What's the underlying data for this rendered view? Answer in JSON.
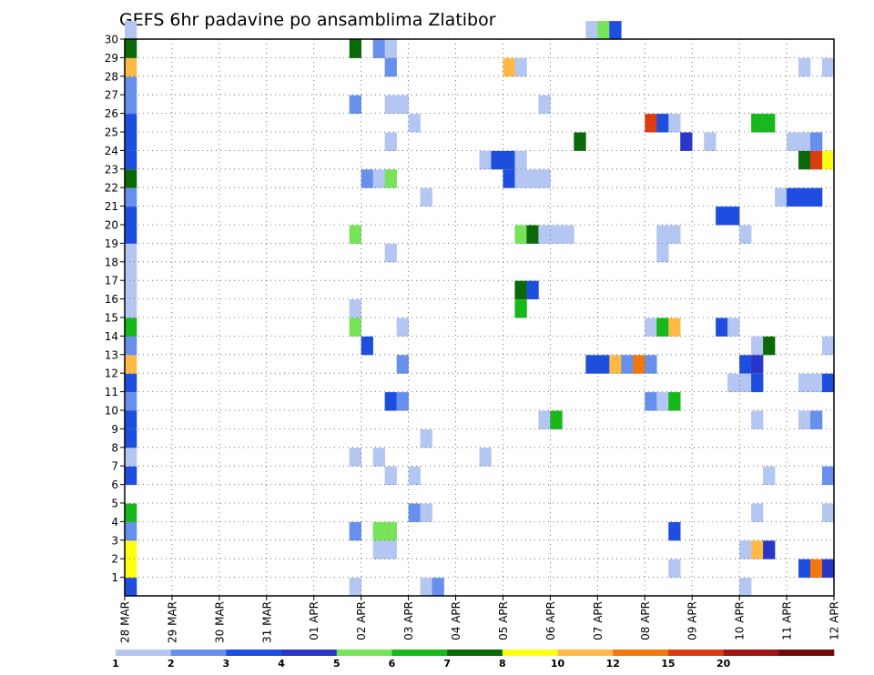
{
  "chart_data": {
    "type": "heatmap",
    "title": "GEFS 6hr padavine po ansamblima Zlatibor",
    "y_ticks": [
      "1",
      "2",
      "3",
      "4",
      "5",
      "6",
      "7",
      "8",
      "9",
      "10",
      "11",
      "12",
      "13",
      "14",
      "15",
      "16",
      "17",
      "18",
      "19",
      "20",
      "21",
      "22",
      "23",
      "24",
      "25",
      "26",
      "27",
      "28",
      "29",
      "30"
    ],
    "x_ticks": [
      "28 MAR",
      "29 MAR",
      "30 MAR",
      "31 MAR",
      "01 APR",
      "02 APR",
      "03 APR",
      "04 APR",
      "05 APR",
      "06 APR",
      "07 APR",
      "08 APR",
      "09 APR",
      "10 APR",
      "11 APR",
      "12 APR"
    ],
    "time_steps_per_day": 4,
    "grid": true,
    "legend_placement": "bottom",
    "legend": {
      "labels": [
        "1",
        "2",
        "3",
        "4",
        "5",
        "6",
        "7",
        "8",
        "10",
        "12",
        "15",
        "20"
      ],
      "colors": [
        "#b4c6f2",
        "#6690ec",
        "#1e4ee0",
        "#2936c8",
        "#78e35a",
        "#16b81a",
        "#0a6a0a",
        "#ffff14",
        "#ffba46",
        "#f2780e",
        "#dc3c12",
        "#a01414",
        "#6e0a0a"
      ]
    },
    "cells": [
      {
        "m": 1,
        "t": 0,
        "b": 7
      },
      {
        "m": 2,
        "t": 0,
        "b": 7
      },
      {
        "m": 3,
        "t": 0,
        "b": 1
      },
      {
        "m": 4,
        "t": 0,
        "b": 5
      },
      {
        "m": 6,
        "t": 0,
        "b": 2
      },
      {
        "m": 7,
        "t": 0,
        "b": 0
      },
      {
        "m": 8,
        "t": 0,
        "b": 2
      },
      {
        "m": 9,
        "t": 0,
        "b": 2
      },
      {
        "m": 10,
        "t": 0,
        "b": 1
      },
      {
        "m": 11,
        "t": 0,
        "b": 2
      },
      {
        "m": 12,
        "t": 0,
        "b": 8
      },
      {
        "m": 13,
        "t": 0,
        "b": 1
      },
      {
        "m": 14,
        "t": 0,
        "b": 5
      },
      {
        "m": 15,
        "t": 0,
        "b": 0
      },
      {
        "m": 16,
        "t": 0,
        "b": 0
      },
      {
        "m": 17,
        "t": 0,
        "b": 0
      },
      {
        "m": 18,
        "t": 0,
        "b": 0
      },
      {
        "m": 19,
        "t": 0,
        "b": 2
      },
      {
        "m": 20,
        "t": 0,
        "b": 2
      },
      {
        "m": 21,
        "t": 0,
        "b": 1
      },
      {
        "m": 22,
        "t": 0,
        "b": 6
      },
      {
        "m": 23,
        "t": 0,
        "b": 2
      },
      {
        "m": 24,
        "t": 0,
        "b": 2
      },
      {
        "m": 25,
        "t": 0,
        "b": 2
      },
      {
        "m": 26,
        "t": 0,
        "b": 1
      },
      {
        "m": 27,
        "t": 0,
        "b": 1
      },
      {
        "m": 28,
        "t": 0,
        "b": 8
      },
      {
        "m": 29,
        "t": 0,
        "b": 6
      },
      {
        "m": 30,
        "t": 0,
        "b": 0
      },
      {
        "m": 0,
        "t": 0,
        "b": 2
      },
      {
        "m": 29,
        "t": 19,
        "b": 6
      },
      {
        "m": 26,
        "t": 19,
        "b": 1
      },
      {
        "m": 19,
        "t": 19,
        "b": 4
      },
      {
        "m": 15,
        "t": 19,
        "b": 0
      },
      {
        "m": 14,
        "t": 19,
        "b": 4
      },
      {
        "m": 7,
        "t": 19,
        "b": 0
      },
      {
        "m": 3,
        "t": 19,
        "b": 1
      },
      {
        "m": 0,
        "t": 19,
        "b": 0
      },
      {
        "m": 22,
        "t": 20,
        "b": 1
      },
      {
        "m": 13,
        "t": 20,
        "b": 2
      },
      {
        "m": 29,
        "t": 21,
        "b": 1
      },
      {
        "m": 22,
        "t": 21,
        "b": 0
      },
      {
        "m": 7,
        "t": 21,
        "b": 0
      },
      {
        "m": 3,
        "t": 21,
        "b": 4
      },
      {
        "m": 2,
        "t": 21,
        "b": 0
      },
      {
        "m": 29,
        "t": 22,
        "b": 0
      },
      {
        "m": 28,
        "t": 22,
        "b": 1
      },
      {
        "m": 26,
        "t": 22,
        "b": 0
      },
      {
        "m": 24,
        "t": 22,
        "b": 0
      },
      {
        "m": 22,
        "t": 22,
        "b": 4
      },
      {
        "m": 18,
        "t": 22,
        "b": 0
      },
      {
        "m": 10,
        "t": 22,
        "b": 2
      },
      {
        "m": 6,
        "t": 22,
        "b": 0
      },
      {
        "m": 3,
        "t": 22,
        "b": 4
      },
      {
        "m": 2,
        "t": 22,
        "b": 0
      },
      {
        "m": 26,
        "t": 23,
        "b": 0
      },
      {
        "m": 14,
        "t": 23,
        "b": 0
      },
      {
        "m": 12,
        "t": 23,
        "b": 1
      },
      {
        "m": 10,
        "t": 23,
        "b": 1
      },
      {
        "m": 25,
        "t": 24,
        "b": 0
      },
      {
        "m": 6,
        "t": 24,
        "b": 0
      },
      {
        "m": 4,
        "t": 24,
        "b": 1
      },
      {
        "m": 21,
        "t": 25,
        "b": 0
      },
      {
        "m": 8,
        "t": 25,
        "b": 0
      },
      {
        "m": 4,
        "t": 25,
        "b": 0
      },
      {
        "m": 0,
        "t": 25,
        "b": 0
      },
      {
        "m": 0,
        "t": 26,
        "b": 1
      },
      {
        "m": 23,
        "t": 30,
        "b": 0
      },
      {
        "m": 7,
        "t": 30,
        "b": 0
      },
      {
        "m": 23,
        "t": 31,
        "b": 2
      },
      {
        "m": 23,
        "t": 32,
        "b": 2
      },
      {
        "m": 28,
        "t": 32,
        "b": 8
      },
      {
        "m": 22,
        "t": 32,
        "b": 2
      },
      {
        "m": 28,
        "t": 33,
        "b": 0
      },
      {
        "m": 23,
        "t": 33,
        "b": 0
      },
      {
        "m": 22,
        "t": 33,
        "b": 0
      },
      {
        "m": 19,
        "t": 33,
        "b": 4
      },
      {
        "m": 16,
        "t": 33,
        "b": 6
      },
      {
        "m": 15,
        "t": 33,
        "b": 5
      },
      {
        "m": 19,
        "t": 34,
        "b": 6
      },
      {
        "m": 16,
        "t": 34,
        "b": 2
      },
      {
        "m": 22,
        "t": 34,
        "b": 0
      },
      {
        "m": 22,
        "t": 35,
        "b": 0
      },
      {
        "m": 26,
        "t": 35,
        "b": 0
      },
      {
        "m": 9,
        "t": 35,
        "b": 0
      },
      {
        "m": 19,
        "t": 35,
        "b": 0
      },
      {
        "m": 19,
        "t": 36,
        "b": 0
      },
      {
        "m": 19,
        "t": 37,
        "b": 0
      },
      {
        "m": 9,
        "t": 36,
        "b": 5
      },
      {
        "m": 24,
        "t": 38,
        "b": 6
      },
      {
        "m": 30,
        "t": 39,
        "b": 0
      },
      {
        "m": 12,
        "t": 39,
        "b": 2
      },
      {
        "m": 12,
        "t": 40,
        "b": 2
      },
      {
        "m": 12,
        "t": 41,
        "b": 8
      },
      {
        "m": 12,
        "t": 42,
        "b": 1
      },
      {
        "m": 30,
        "t": 40,
        "b": 4
      },
      {
        "m": 30,
        "t": 41,
        "b": 2
      },
      {
        "m": 12,
        "t": 43,
        "b": 9
      },
      {
        "m": 12,
        "t": 44,
        "b": 1
      },
      {
        "m": 10,
        "t": 44,
        "b": 1
      },
      {
        "m": 25,
        "t": 44,
        "b": 10
      },
      {
        "m": 19,
        "t": 45,
        "b": 0
      },
      {
        "m": 18,
        "t": 45,
        "b": 0
      },
      {
        "m": 10,
        "t": 45,
        "b": 0
      },
      {
        "m": 25,
        "t": 45,
        "b": 2
      },
      {
        "m": 19,
        "t": 46,
        "b": 0
      },
      {
        "m": 25,
        "t": 46,
        "b": 0
      },
      {
        "m": 14,
        "t": 44,
        "b": 0
      },
      {
        "m": 14,
        "t": 45,
        "b": 5
      },
      {
        "m": 14,
        "t": 46,
        "b": 8
      },
      {
        "m": 10,
        "t": 46,
        "b": 5
      },
      {
        "m": 1,
        "t": 46,
        "b": 0
      },
      {
        "m": 3,
        "t": 46,
        "b": 2
      },
      {
        "m": 24,
        "t": 47,
        "b": 3
      },
      {
        "m": 24,
        "t": 49,
        "b": 0
      },
      {
        "m": 20,
        "t": 50,
        "b": 2
      },
      {
        "m": 20,
        "t": 51,
        "b": 2
      },
      {
        "m": 14,
        "t": 50,
        "b": 2
      },
      {
        "m": 14,
        "t": 51,
        "b": 0
      },
      {
        "m": 11,
        "t": 51,
        "b": 0
      },
      {
        "m": 0,
        "t": 52,
        "b": 0
      },
      {
        "m": 19,
        "t": 52,
        "b": 0
      },
      {
        "m": 12,
        "t": 52,
        "b": 2
      },
      {
        "m": 11,
        "t": 52,
        "b": 0
      },
      {
        "m": 2,
        "t": 52,
        "b": 0
      },
      {
        "m": 2,
        "t": 53,
        "b": 8
      },
      {
        "m": 4,
        "t": 53,
        "b": 0
      },
      {
        "m": 25,
        "t": 53,
        "b": 5
      },
      {
        "m": 25,
        "t": 54,
        "b": 5
      },
      {
        "m": 13,
        "t": 53,
        "b": 0
      },
      {
        "m": 12,
        "t": 53,
        "b": 3
      },
      {
        "m": 11,
        "t": 53,
        "b": 2
      },
      {
        "m": 9,
        "t": 53,
        "b": 0
      },
      {
        "m": 13,
        "t": 54,
        "b": 6
      },
      {
        "m": 2,
        "t": 54,
        "b": 3
      },
      {
        "m": 6,
        "t": 54,
        "b": 0
      },
      {
        "m": 21,
        "t": 55,
        "b": 0
      },
      {
        "m": 24,
        "t": 56,
        "b": 0
      },
      {
        "m": 21,
        "t": 56,
        "b": 2
      },
      {
        "m": 21,
        "t": 57,
        "b": 2
      },
      {
        "m": 21,
        "t": 58,
        "b": 2
      },
      {
        "m": 23,
        "t": 57,
        "b": 6
      },
      {
        "m": 23,
        "t": 58,
        "b": 10
      },
      {
        "m": 23,
        "t": 59,
        "b": 7
      },
      {
        "m": 11,
        "t": 57,
        "b": 0
      },
      {
        "m": 9,
        "t": 57,
        "b": 0
      },
      {
        "m": 9,
        "t": 58,
        "b": 1
      },
      {
        "m": 1,
        "t": 57,
        "b": 2
      },
      {
        "m": 1,
        "t": 58,
        "b": 9
      },
      {
        "m": 1,
        "t": 59,
        "b": 3
      },
      {
        "m": 24,
        "t": 57,
        "b": 0
      },
      {
        "m": 24,
        "t": 58,
        "b": 1
      },
      {
        "m": 11,
        "t": 58,
        "b": 0
      },
      {
        "m": 11,
        "t": 59,
        "b": 2
      },
      {
        "m": 28,
        "t": 57,
        "b": 0
      },
      {
        "m": 28,
        "t": 59,
        "b": 0
      },
      {
        "m": 13,
        "t": 59,
        "b": 0
      },
      {
        "m": 6,
        "t": 59,
        "b": 1
      },
      {
        "m": 4,
        "t": 59,
        "b": 0
      }
    ]
  }
}
